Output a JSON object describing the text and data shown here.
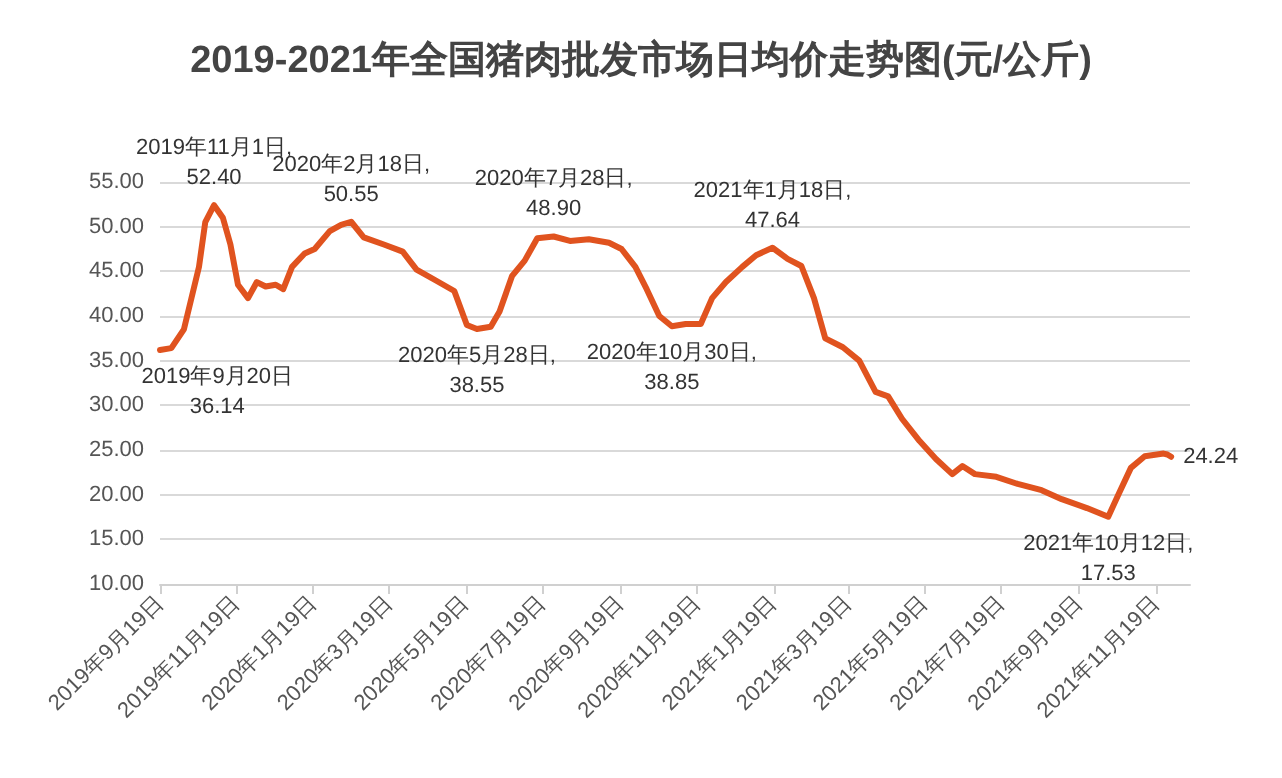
{
  "chart_data": {
    "type": "line",
    "title": "2019-2021年全国猪肉批发市场日均价走势图(元/公斤)",
    "x": [
      "2019-09-19",
      "2019-09-20",
      "2019-09-28",
      "2019-10-08",
      "2019-10-14",
      "2019-10-20",
      "2019-10-25",
      "2019-11-01",
      "2019-11-08",
      "2019-11-14",
      "2019-11-20",
      "2019-11-28",
      "2019-12-05",
      "2019-12-12",
      "2019-12-20",
      "2019-12-26",
      "2020-01-02",
      "2020-01-12",
      "2020-01-20",
      "2020-02-01",
      "2020-02-10",
      "2020-02-18",
      "2020-02-28",
      "2020-03-15",
      "2020-03-30",
      "2020-04-10",
      "2020-04-25",
      "2020-05-10",
      "2020-05-20",
      "2020-05-28",
      "2020-06-08",
      "2020-06-15",
      "2020-06-25",
      "2020-07-05",
      "2020-07-15",
      "2020-07-28",
      "2020-08-10",
      "2020-08-25",
      "2020-09-10",
      "2020-09-20",
      "2020-10-01",
      "2020-10-10",
      "2020-10-20",
      "2020-10-30",
      "2020-11-10",
      "2020-11-22",
      "2020-12-01",
      "2020-12-12",
      "2020-12-25",
      "2021-01-05",
      "2021-01-18",
      "2021-01-30",
      "2021-02-10",
      "2021-02-20",
      "2021-03-01",
      "2021-03-15",
      "2021-03-28",
      "2021-04-10",
      "2021-04-20",
      "2021-05-01",
      "2021-05-15",
      "2021-05-28",
      "2021-06-10",
      "2021-06-18",
      "2021-06-28",
      "2021-07-15",
      "2021-08-01",
      "2021-08-20",
      "2021-09-05",
      "2021-09-25",
      "2021-10-12",
      "2021-10-20",
      "2021-10-30",
      "2021-11-10",
      "2021-11-25",
      "2021-11-28",
      "2021-12-01"
    ],
    "series": [
      {
        "color": "#e0531f",
        "values": [
          36.2,
          36.14,
          36.4,
          38.5,
          42,
          45.5,
          50.5,
          52.4,
          51,
          48,
          43.5,
          42,
          43.8,
          43.3,
          43.5,
          43,
          45.5,
          47,
          47.5,
          49.5,
          50.2,
          50.55,
          48.8,
          48,
          47.2,
          45.2,
          44,
          42.8,
          39,
          38.55,
          38.8,
          40.5,
          44.5,
          46.2,
          48.7,
          48.9,
          48.4,
          48.6,
          48.2,
          47.5,
          45.5,
          43,
          40,
          38.85,
          39.1,
          39.1,
          42,
          43.8,
          45.5,
          46.8,
          47.64,
          46.4,
          45.6,
          42,
          37.5,
          36.5,
          35,
          31.5,
          31,
          28.5,
          26,
          24,
          22.3,
          23.2,
          22.3,
          22,
          21.2,
          20.5,
          19.5,
          18.5,
          17.53,
          20,
          23,
          24.3,
          24.6,
          24.5,
          24.24
        ]
      }
    ],
    "annotations": [
      {
        "text": "2019年9月20日\n36.14",
        "x": "2019-09-20",
        "y": 36.14
      },
      {
        "text": "2019年11月1日,\n52.40",
        "x": "2019-11-01",
        "y": 52.4
      },
      {
        "text": "2020年2月18日,\n50.55",
        "x": "2020-02-18",
        "y": 50.55
      },
      {
        "text": "2020年5月28日,\n38.55",
        "x": "2020-05-28",
        "y": 38.55
      },
      {
        "text": "2020年7月28日,\n48.90",
        "x": "2020-07-28",
        "y": 48.9
      },
      {
        "text": "2020年10月30日,\n38.85",
        "x": "2020-10-30",
        "y": 38.85
      },
      {
        "text": "2021年1月18日,\n47.64",
        "x": "2021-01-18",
        "y": 47.64
      },
      {
        "text": "2021年10月12日,\n17.53",
        "x": "2021-10-12",
        "y": 17.53
      },
      {
        "text": "24.24",
        "x": "2021-12-01",
        "y": 24.24
      }
    ],
    "xlim": [
      "2019-09-19",
      "2021-12-16"
    ],
    "xticks": [
      {
        "value": "2019-09-19",
        "label": "2019年9月19日"
      },
      {
        "value": "2019-11-19",
        "label": "2019年11月19日"
      },
      {
        "value": "2020-01-19",
        "label": "2020年1月19日"
      },
      {
        "value": "2020-03-19",
        "label": "2020年3月19日"
      },
      {
        "value": "2020-05-19",
        "label": "2020年5月19日"
      },
      {
        "value": "2020-07-19",
        "label": "2020年7月19日"
      },
      {
        "value": "2020-09-19",
        "label": "2020年9月19日"
      },
      {
        "value": "2020-11-19",
        "label": "2020年11月19日"
      },
      {
        "value": "2021-01-19",
        "label": "2021年1月19日"
      },
      {
        "value": "2021-03-19",
        "label": "2021年3月19日"
      },
      {
        "value": "2021-05-19",
        "label": "2021年5月19日"
      },
      {
        "value": "2021-07-19",
        "label": "2021年7月19日"
      },
      {
        "value": "2021-09-19",
        "label": "2021年9月19日"
      },
      {
        "value": "2021-11-19",
        "label": "2021年11月19日"
      }
    ],
    "ylim": [
      10,
      55
    ],
    "yticks": [
      {
        "value": 10,
        "label": "10.00"
      },
      {
        "value": 15,
        "label": "15.00"
      },
      {
        "value": 20,
        "label": "20.00"
      },
      {
        "value": 25,
        "label": "25.00"
      },
      {
        "value": 30,
        "label": "30.00"
      },
      {
        "value": 35,
        "label": "35.00"
      },
      {
        "value": 40,
        "label": "40.00"
      },
      {
        "value": 45,
        "label": "45.00"
      },
      {
        "value": 50,
        "label": "50.00"
      },
      {
        "value": 55,
        "label": "55.00"
      }
    ],
    "grid": "y",
    "marker": "none",
    "line_style": "solid"
  }
}
